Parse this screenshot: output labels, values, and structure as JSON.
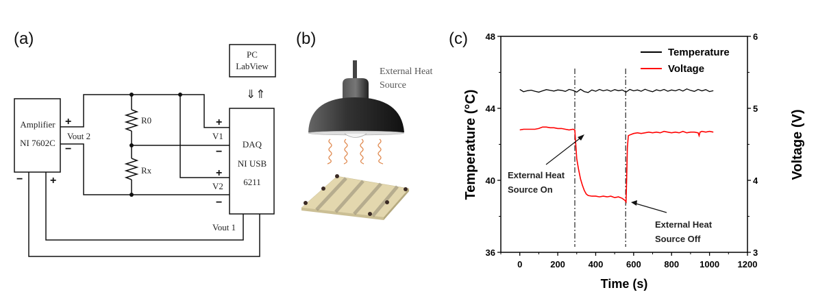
{
  "panels": {
    "a": {
      "label": "(a)",
      "pc_line1": "PC",
      "pc_line2": "LabView",
      "amp_line1": "Amplifier",
      "amp_line2": "NI 7602C",
      "daq_line1": "DAQ",
      "daq_line2": "NI USB",
      "daq_line3": "6211",
      "r0": "R0",
      "rx": "Rx",
      "vout2": "Vout 2",
      "vout1": "Vout 1",
      "v1": "V1",
      "v2": "V2",
      "plus": "+",
      "minus": "−",
      "arrows": "⇓⇑"
    },
    "b": {
      "label": "(b)",
      "heat_line1": "External Heat",
      "heat_line2": "Source"
    },
    "c": {
      "label": "(c)"
    }
  },
  "chart_data": {
    "type": "line",
    "xlabel": "Time (s)",
    "ylabel_left": "Temperature (°C)",
    "ylabel_right": "Voltage (V)",
    "xlim": [
      -100,
      1200
    ],
    "ylim_left": [
      36,
      48
    ],
    "ylim_right": [
      3,
      6
    ],
    "xticks": [
      0,
      200,
      400,
      600,
      800,
      1000,
      1200
    ],
    "yticks_left": [
      36,
      40,
      44,
      48
    ],
    "yticks_right": [
      3,
      4,
      5,
      6
    ],
    "legend": {
      "position": "top-right",
      "entries": [
        "Temperature",
        "Voltage"
      ]
    },
    "colors": {
      "Temperature": "#000000",
      "Voltage": "#ff0000"
    },
    "vlines": [
      290,
      558
    ],
    "annotations": [
      {
        "line1": "External Heat",
        "line2": "Source On",
        "target_x": 290,
        "target_v": 4.7
      },
      {
        "line1": "External Heat",
        "line2": "Source Off",
        "target_x": 560,
        "target_v": 3.7
      }
    ],
    "series": [
      {
        "name": "Temperature",
        "axis": "left",
        "x": [
          0,
          20,
          40,
          60,
          80,
          100,
          120,
          140,
          160,
          180,
          200,
          220,
          240,
          260,
          280,
          300,
          320,
          340,
          360,
          380,
          400,
          420,
          440,
          460,
          480,
          500,
          520,
          540,
          560,
          580,
          600,
          620,
          640,
          660,
          680,
          700,
          720,
          740,
          760,
          780,
          800,
          820,
          840,
          860,
          880,
          900,
          920,
          940,
          960,
          980,
          1000,
          1020
        ],
        "y": [
          45.05,
          44.92,
          44.98,
          45.01,
          44.95,
          44.9,
          44.97,
          45.04,
          45.0,
          44.96,
          45.02,
          45.0,
          44.94,
          45.05,
          45.0,
          44.9,
          45.06,
          44.93,
          44.88,
          45.02,
          44.95,
          45.05,
          44.97,
          45.03,
          44.95,
          45.04,
          44.98,
          45.02,
          44.9,
          45.05,
          44.97,
          45.02,
          44.95,
          45.06,
          44.98,
          44.92,
          45.03,
          44.97,
          45.05,
          44.95,
          45.02,
          44.97,
          45.05,
          44.96,
          45.08,
          45.0,
          44.94,
          45.05,
          44.97,
          45.04,
          44.93,
          44.98
        ]
      },
      {
        "name": "Voltage",
        "axis": "right",
        "x": [
          0,
          20,
          40,
          60,
          80,
          100,
          120,
          140,
          160,
          180,
          200,
          220,
          240,
          260,
          280,
          290,
          295,
          300,
          310,
          320,
          330,
          340,
          350,
          360,
          380,
          400,
          420,
          440,
          460,
          480,
          500,
          520,
          540,
          555,
          560,
          563,
          567,
          572,
          580,
          600,
          620,
          640,
          660,
          680,
          700,
          720,
          740,
          760,
          780,
          800,
          820,
          840,
          860,
          880,
          900,
          920,
          940,
          945,
          950,
          960,
          980,
          1000,
          1020
        ],
        "y": [
          4.7,
          4.71,
          4.71,
          4.71,
          4.71,
          4.72,
          4.74,
          4.74,
          4.73,
          4.73,
          4.72,
          4.72,
          4.71,
          4.7,
          4.71,
          4.7,
          4.5,
          4.3,
          4.15,
          4.02,
          3.93,
          3.86,
          3.81,
          3.79,
          3.78,
          3.78,
          3.77,
          3.78,
          3.77,
          3.78,
          3.76,
          3.77,
          3.75,
          3.72,
          3.7,
          4.0,
          4.45,
          4.62,
          4.63,
          4.65,
          4.66,
          4.65,
          4.66,
          4.67,
          4.66,
          4.67,
          4.66,
          4.68,
          4.67,
          4.66,
          4.67,
          4.66,
          4.68,
          4.66,
          4.67,
          4.67,
          4.66,
          4.62,
          4.67,
          4.68,
          4.67,
          4.68,
          4.67
        ]
      }
    ]
  }
}
